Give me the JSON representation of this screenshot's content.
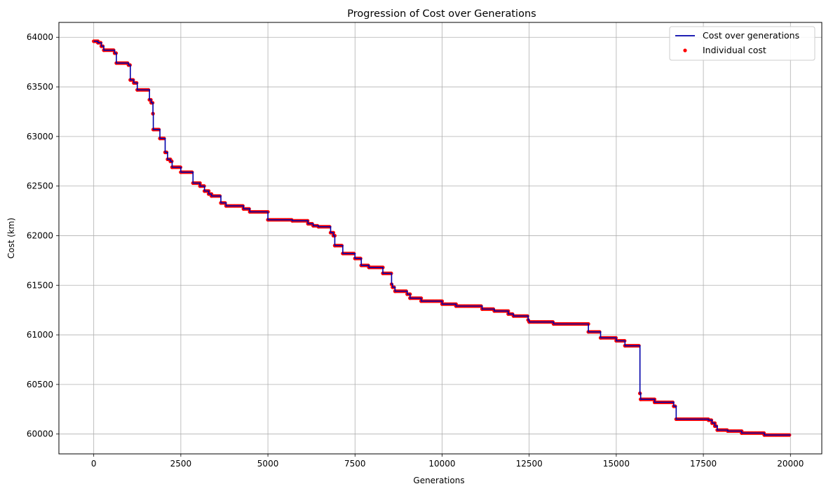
{
  "chart_data": {
    "type": "line",
    "title": "Progression of Cost over Generations",
    "xlabel": "Generations",
    "ylabel": "Cost (km)",
    "xlim": [
      -1000,
      20900
    ],
    "ylim": [
      59800,
      64150
    ],
    "xticks": [
      0,
      2500,
      5000,
      7500,
      10000,
      12500,
      15000,
      17500,
      20000
    ],
    "yticks": [
      60000,
      60500,
      61000,
      61500,
      62000,
      62500,
      63000,
      63500,
      64000
    ],
    "grid": true,
    "legend_position": "top-right",
    "series": [
      {
        "name": "Cost over generations",
        "kind": "line",
        "color": "#0000aa",
        "points": [
          [
            0,
            63960
          ],
          [
            120,
            63960
          ],
          [
            120,
            63945
          ],
          [
            220,
            63945
          ],
          [
            220,
            63910
          ],
          [
            290,
            63910
          ],
          [
            290,
            63870
          ],
          [
            600,
            63870
          ],
          [
            600,
            63840
          ],
          [
            650,
            63840
          ],
          [
            650,
            63740
          ],
          [
            1000,
            63740
          ],
          [
            1000,
            63720
          ],
          [
            1050,
            63720
          ],
          [
            1050,
            63570
          ],
          [
            1150,
            63570
          ],
          [
            1150,
            63540
          ],
          [
            1250,
            63540
          ],
          [
            1250,
            63470
          ],
          [
            1600,
            63470
          ],
          [
            1600,
            63370
          ],
          [
            1650,
            63370
          ],
          [
            1650,
            63340
          ],
          [
            1700,
            63340
          ],
          [
            1700,
            63230
          ],
          [
            1710,
            63230
          ],
          [
            1710,
            63070
          ],
          [
            1900,
            63070
          ],
          [
            1900,
            62980
          ],
          [
            2050,
            62980
          ],
          [
            2050,
            62840
          ],
          [
            2120,
            62840
          ],
          [
            2120,
            62770
          ],
          [
            2200,
            62770
          ],
          [
            2200,
            62750
          ],
          [
            2250,
            62750
          ],
          [
            2250,
            62690
          ],
          [
            2500,
            62690
          ],
          [
            2500,
            62640
          ],
          [
            2850,
            62640
          ],
          [
            2850,
            62530
          ],
          [
            3050,
            62530
          ],
          [
            3050,
            62500
          ],
          [
            3180,
            62500
          ],
          [
            3180,
            62450
          ],
          [
            3300,
            62450
          ],
          [
            3300,
            62420
          ],
          [
            3380,
            62420
          ],
          [
            3380,
            62400
          ],
          [
            3650,
            62400
          ],
          [
            3650,
            62330
          ],
          [
            3800,
            62330
          ],
          [
            3800,
            62300
          ],
          [
            4300,
            62300
          ],
          [
            4300,
            62270
          ],
          [
            4480,
            62270
          ],
          [
            4480,
            62240
          ],
          [
            5000,
            62240
          ],
          [
            5000,
            62160
          ],
          [
            5700,
            62160
          ],
          [
            5700,
            62150
          ],
          [
            6150,
            62150
          ],
          [
            6150,
            62120
          ],
          [
            6300,
            62120
          ],
          [
            6300,
            62100
          ],
          [
            6450,
            62100
          ],
          [
            6450,
            62090
          ],
          [
            6800,
            62090
          ],
          [
            6800,
            62030
          ],
          [
            6880,
            62030
          ],
          [
            6880,
            62000
          ],
          [
            6920,
            62000
          ],
          [
            6920,
            61900
          ],
          [
            7150,
            61900
          ],
          [
            7150,
            61820
          ],
          [
            7500,
            61820
          ],
          [
            7500,
            61770
          ],
          [
            7680,
            61770
          ],
          [
            7680,
            61700
          ],
          [
            7900,
            61700
          ],
          [
            7900,
            61680
          ],
          [
            8300,
            61680
          ],
          [
            8300,
            61620
          ],
          [
            8550,
            61620
          ],
          [
            8550,
            61510
          ],
          [
            8580,
            61510
          ],
          [
            8580,
            61480
          ],
          [
            8650,
            61480
          ],
          [
            8650,
            61440
          ],
          [
            9000,
            61440
          ],
          [
            9000,
            61410
          ],
          [
            9080,
            61410
          ],
          [
            9080,
            61370
          ],
          [
            9400,
            61370
          ],
          [
            9400,
            61340
          ],
          [
            10000,
            61340
          ],
          [
            10000,
            61310
          ],
          [
            10400,
            61310
          ],
          [
            10400,
            61290
          ],
          [
            11150,
            61290
          ],
          [
            11150,
            61260
          ],
          [
            11500,
            61260
          ],
          [
            11500,
            61240
          ],
          [
            11900,
            61240
          ],
          [
            11900,
            61210
          ],
          [
            12050,
            61210
          ],
          [
            12050,
            61190
          ],
          [
            12470,
            61190
          ],
          [
            12470,
            61150
          ],
          [
            12500,
            61150
          ],
          [
            12500,
            61130
          ],
          [
            13200,
            61130
          ],
          [
            13200,
            61110
          ],
          [
            14200,
            61110
          ],
          [
            14200,
            61030
          ],
          [
            14550,
            61030
          ],
          [
            14550,
            60970
          ],
          [
            15000,
            60970
          ],
          [
            15000,
            60940
          ],
          [
            15250,
            60940
          ],
          [
            15250,
            60890
          ],
          [
            15680,
            60890
          ],
          [
            15680,
            60410
          ],
          [
            15700,
            60410
          ],
          [
            15700,
            60350
          ],
          [
            16100,
            60350
          ],
          [
            16100,
            60320
          ],
          [
            16650,
            60320
          ],
          [
            16650,
            60280
          ],
          [
            16720,
            60280
          ],
          [
            16720,
            60150
          ],
          [
            17650,
            60150
          ],
          [
            17650,
            60140
          ],
          [
            17750,
            60140
          ],
          [
            17750,
            60110
          ],
          [
            17830,
            60110
          ],
          [
            17830,
            60080
          ],
          [
            17900,
            60080
          ],
          [
            17900,
            60040
          ],
          [
            18200,
            60040
          ],
          [
            18200,
            60030
          ],
          [
            18600,
            60030
          ],
          [
            18600,
            60010
          ],
          [
            19250,
            60010
          ],
          [
            19250,
            59990
          ],
          [
            20000,
            59990
          ]
        ]
      },
      {
        "name": "Individual cost",
        "kind": "scatter",
        "color": "#ff0000"
      }
    ]
  }
}
